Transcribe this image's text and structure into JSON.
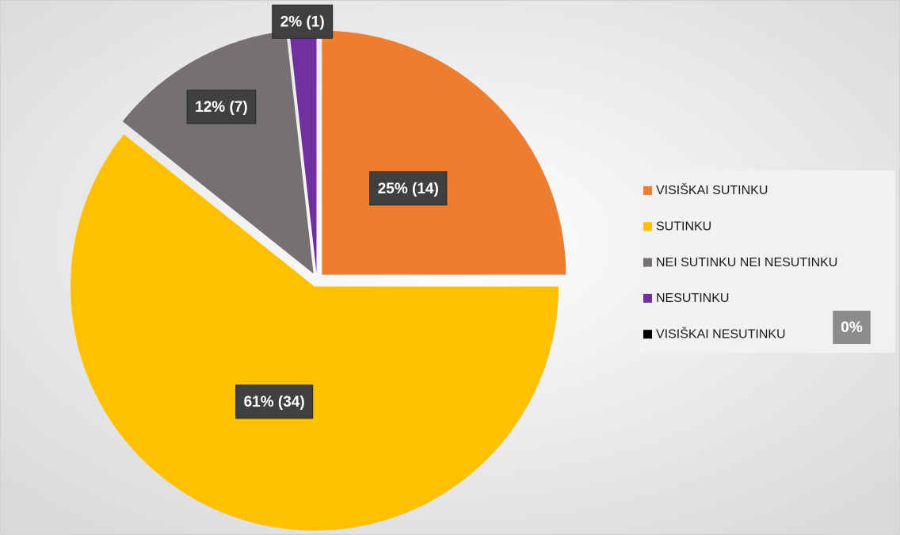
{
  "chart_data": {
    "type": "pie",
    "categories": [
      "VISIŠKAI SUTINKU",
      "SUTINKU",
      "NEI SUTINKU NEI NESUTINKU",
      "NESUTINKU",
      "VISIŠKAI NESUTINKU"
    ],
    "values": [
      14,
      34,
      7,
      1,
      0
    ],
    "value_labels": [
      "25% (14)",
      "61% (34)",
      "12% (7)",
      "2% (1)",
      "0%"
    ],
    "colors": [
      "#ED7D31",
      "#FFC000",
      "#767171",
      "#7030A0",
      "#000000"
    ],
    "legend": "right"
  }
}
